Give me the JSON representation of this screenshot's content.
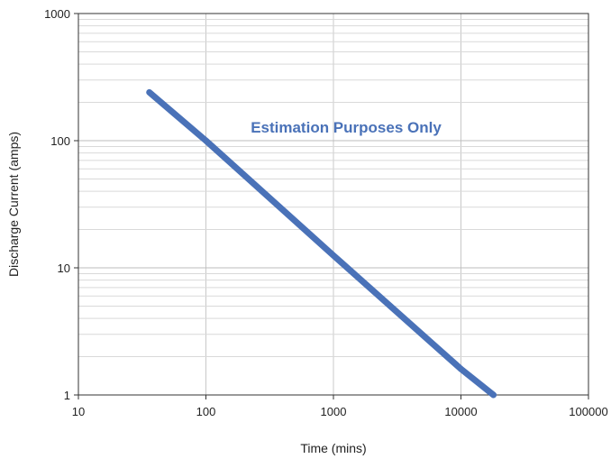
{
  "chart_data": {
    "type": "line",
    "title": "",
    "xlabel": "Time (mins)",
    "ylabel": "Discharge Current (amps)",
    "xscale": "log",
    "yscale": "log",
    "xlim": [
      10,
      100000
    ],
    "ylim": [
      1,
      1000
    ],
    "x_ticks": [
      "10",
      "100",
      "1000",
      "10000",
      "100000"
    ],
    "y_ticks": [
      "1",
      "10",
      "100",
      "1000"
    ],
    "grid": true,
    "legend": "none",
    "series": [
      {
        "color": "#4a72b8",
        "x": [
          36,
          100,
          1000,
          10000,
          18000
        ],
        "y": [
          240,
          100,
          12.5,
          1.6,
          1.0
        ]
      }
    ],
    "annotations": [
      {
        "text": "Estimation Purposes Only",
        "color": "#4a72b8"
      }
    ]
  }
}
